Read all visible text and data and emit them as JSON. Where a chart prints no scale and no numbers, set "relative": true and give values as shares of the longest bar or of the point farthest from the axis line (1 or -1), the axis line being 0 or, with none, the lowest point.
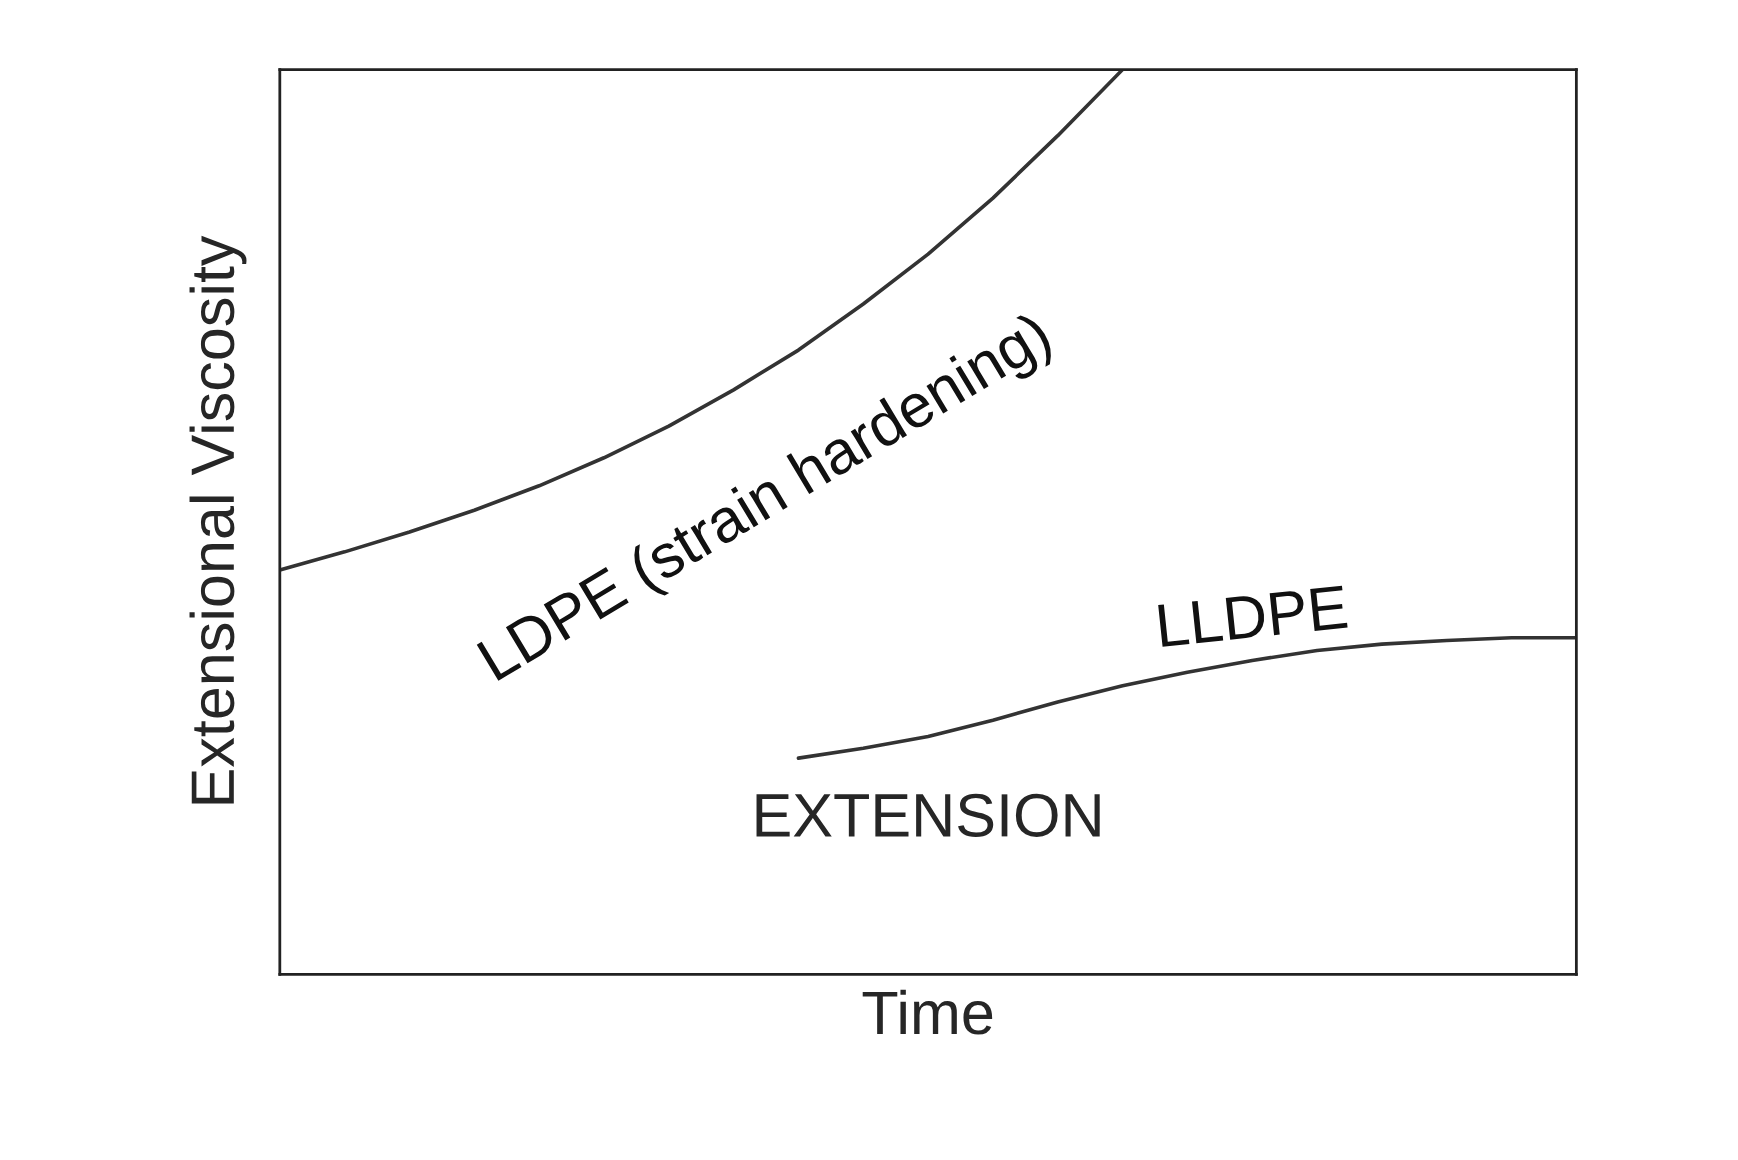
{
  "chart_data": {
    "type": "line",
    "relative": true,
    "xlabel": "Time",
    "ylabel": "Extensional Viscosity",
    "categories": [
      null,
      null,
      null,
      null,
      null,
      null,
      null,
      null,
      null,
      null,
      null,
      null,
      null,
      null,
      null,
      null,
      null,
      null,
      null,
      null,
      null
    ],
    "series": [
      {
        "name": "LDPE (strain hardening)",
        "color": "#333333",
        "values": [
          0.447,
          0.467,
          0.489,
          0.513,
          0.54,
          0.571,
          0.606,
          0.646,
          0.69,
          0.741,
          0.796,
          0.858,
          0.927,
          1.0,
          null,
          null,
          null,
          null,
          null,
          null,
          null
        ]
      },
      {
        "name": "LLDPE",
        "color": "#333333",
        "values": [
          null,
          null,
          null,
          null,
          null,
          null,
          null,
          null,
          0.239,
          0.25,
          0.263,
          0.281,
          0.301,
          0.319,
          0.334,
          0.347,
          0.358,
          0.365,
          0.369,
          0.372,
          0.372
        ]
      }
    ],
    "annotations": [
      "EXTENSION"
    ],
    "grid": false,
    "legend": false
  }
}
